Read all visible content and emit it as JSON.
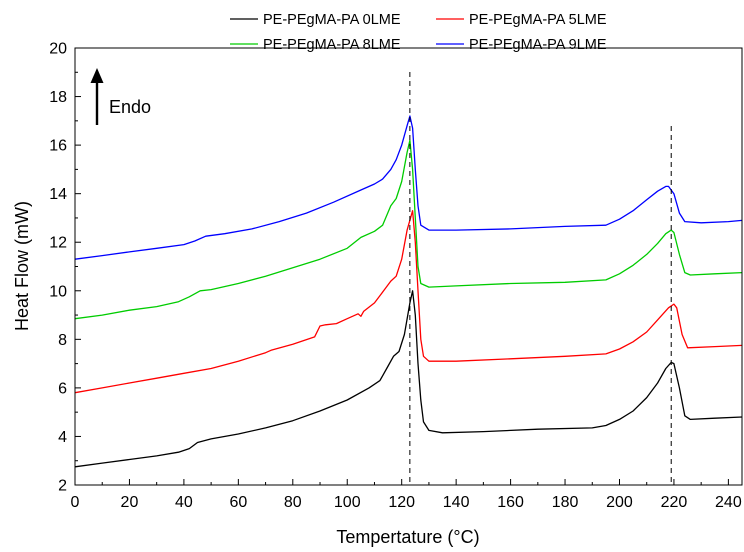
{
  "chart_data": {
    "type": "line",
    "title": "",
    "xlabel": "Tempertature (°C)",
    "ylabel": "Heat Flow (mW)",
    "xlim": [
      0,
      245
    ],
    "ylim": [
      2,
      20
    ],
    "xticks": [
      "0",
      "20",
      "40",
      "60",
      "80",
      "100",
      "120",
      "140",
      "160",
      "180",
      "200",
      "220",
      "240"
    ],
    "yticks": [
      "2",
      "4",
      "6",
      "8",
      "10",
      "12",
      "14",
      "16",
      "18",
      "20"
    ],
    "grid": false,
    "legend_position": "top",
    "annotation": {
      "label": "Endo",
      "arrow": "up"
    },
    "reference_lines_x": [
      123,
      219
    ],
    "series": [
      {
        "name": "PE-PEgMA-PA 0LME",
        "color": "#000000",
        "points": [
          [
            0,
            2.75
          ],
          [
            10,
            2.9
          ],
          [
            20,
            3.05
          ],
          [
            30,
            3.2
          ],
          [
            38,
            3.35
          ],
          [
            42,
            3.5
          ],
          [
            45,
            3.75
          ],
          [
            50,
            3.9
          ],
          [
            60,
            4.1
          ],
          [
            70,
            4.35
          ],
          [
            80,
            4.65
          ],
          [
            90,
            5.05
          ],
          [
            100,
            5.5
          ],
          [
            108,
            6.0
          ],
          [
            112,
            6.3
          ],
          [
            115,
            6.9
          ],
          [
            117,
            7.3
          ],
          [
            119,
            7.5
          ],
          [
            121,
            8.2
          ],
          [
            123,
            9.5
          ],
          [
            124,
            10.0
          ],
          [
            125,
            9.0
          ],
          [
            126,
            7.0
          ],
          [
            127,
            5.5
          ],
          [
            128,
            4.6
          ],
          [
            130,
            4.25
          ],
          [
            135,
            4.15
          ],
          [
            150,
            4.2
          ],
          [
            170,
            4.3
          ],
          [
            190,
            4.35
          ],
          [
            195,
            4.45
          ],
          [
            200,
            4.7
          ],
          [
            205,
            5.05
          ],
          [
            210,
            5.6
          ],
          [
            214,
            6.2
          ],
          [
            217,
            6.8
          ],
          [
            219,
            7.05
          ],
          [
            220,
            7.0
          ],
          [
            222,
            6.0
          ],
          [
            224,
            4.85
          ],
          [
            226,
            4.7
          ],
          [
            235,
            4.75
          ],
          [
            245,
            4.8
          ]
        ]
      },
      {
        "name": "PE-PEgMA-PA 5LME",
        "color": "#ff0000",
        "points": [
          [
            0,
            5.8
          ],
          [
            10,
            6.0
          ],
          [
            20,
            6.2
          ],
          [
            30,
            6.4
          ],
          [
            40,
            6.6
          ],
          [
            50,
            6.8
          ],
          [
            60,
            7.1
          ],
          [
            70,
            7.45
          ],
          [
            72,
            7.55
          ],
          [
            80,
            7.8
          ],
          [
            88,
            8.1
          ],
          [
            90,
            8.55
          ],
          [
            92,
            8.6
          ],
          [
            96,
            8.65
          ],
          [
            100,
            8.85
          ],
          [
            104,
            9.05
          ],
          [
            105,
            8.95
          ],
          [
            106,
            9.15
          ],
          [
            110,
            9.5
          ],
          [
            114,
            10.1
          ],
          [
            116,
            10.4
          ],
          [
            118,
            10.6
          ],
          [
            120,
            11.3
          ],
          [
            122,
            12.5
          ],
          [
            124,
            13.3
          ],
          [
            125,
            12.0
          ],
          [
            126,
            10.0
          ],
          [
            127,
            8.0
          ],
          [
            128,
            7.3
          ],
          [
            130,
            7.1
          ],
          [
            140,
            7.1
          ],
          [
            160,
            7.2
          ],
          [
            180,
            7.3
          ],
          [
            195,
            7.4
          ],
          [
            200,
            7.6
          ],
          [
            205,
            7.9
          ],
          [
            210,
            8.3
          ],
          [
            214,
            8.8
          ],
          [
            218,
            9.3
          ],
          [
            220,
            9.45
          ],
          [
            221,
            9.3
          ],
          [
            223,
            8.2
          ],
          [
            225,
            7.65
          ],
          [
            235,
            7.7
          ],
          [
            245,
            7.75
          ]
        ]
      },
      {
        "name": "PE-PEgMA-PA 8LME",
        "color": "#00cc00",
        "points": [
          [
            0,
            8.85
          ],
          [
            10,
            9.0
          ],
          [
            20,
            9.2
          ],
          [
            30,
            9.35
          ],
          [
            38,
            9.55
          ],
          [
            42,
            9.75
          ],
          [
            46,
            10.0
          ],
          [
            50,
            10.05
          ],
          [
            60,
            10.3
          ],
          [
            70,
            10.6
          ],
          [
            80,
            10.95
          ],
          [
            90,
            11.3
          ],
          [
            100,
            11.75
          ],
          [
            105,
            12.2
          ],
          [
            110,
            12.45
          ],
          [
            113,
            12.7
          ],
          [
            116,
            13.5
          ],
          [
            118,
            13.8
          ],
          [
            120,
            14.5
          ],
          [
            122,
            15.7
          ],
          [
            123,
            16.2
          ],
          [
            124,
            15.0
          ],
          [
            125,
            13.0
          ],
          [
            126,
            11.0
          ],
          [
            127,
            10.3
          ],
          [
            130,
            10.15
          ],
          [
            140,
            10.2
          ],
          [
            160,
            10.3
          ],
          [
            180,
            10.35
          ],
          [
            195,
            10.45
          ],
          [
            200,
            10.7
          ],
          [
            205,
            11.05
          ],
          [
            210,
            11.5
          ],
          [
            214,
            11.95
          ],
          [
            217,
            12.35
          ],
          [
            219,
            12.5
          ],
          [
            220,
            12.4
          ],
          [
            222,
            11.5
          ],
          [
            224,
            10.75
          ],
          [
            226,
            10.65
          ],
          [
            235,
            10.7
          ],
          [
            245,
            10.75
          ]
        ]
      },
      {
        "name": "PE-PEgMA-PA 9LME",
        "color": "#0000ff",
        "points": [
          [
            0,
            11.3
          ],
          [
            10,
            11.45
          ],
          [
            20,
            11.6
          ],
          [
            30,
            11.75
          ],
          [
            40,
            11.9
          ],
          [
            44,
            12.05
          ],
          [
            48,
            12.25
          ],
          [
            55,
            12.35
          ],
          [
            65,
            12.55
          ],
          [
            75,
            12.85
          ],
          [
            85,
            13.2
          ],
          [
            95,
            13.65
          ],
          [
            105,
            14.15
          ],
          [
            110,
            14.4
          ],
          [
            113,
            14.6
          ],
          [
            116,
            15.0
          ],
          [
            118,
            15.4
          ],
          [
            120,
            16.0
          ],
          [
            122,
            16.8
          ],
          [
            123,
            17.2
          ],
          [
            124,
            16.7
          ],
          [
            125,
            15.0
          ],
          [
            126,
            13.5
          ],
          [
            127,
            12.7
          ],
          [
            130,
            12.5
          ],
          [
            140,
            12.5
          ],
          [
            160,
            12.55
          ],
          [
            180,
            12.65
          ],
          [
            195,
            12.7
          ],
          [
            200,
            12.95
          ],
          [
            205,
            13.3
          ],
          [
            210,
            13.75
          ],
          [
            214,
            14.1
          ],
          [
            217,
            14.3
          ],
          [
            218,
            14.3
          ],
          [
            220,
            14.0
          ],
          [
            222,
            13.2
          ],
          [
            224,
            12.85
          ],
          [
            230,
            12.8
          ],
          [
            240,
            12.85
          ],
          [
            245,
            12.9
          ]
        ]
      }
    ]
  }
}
